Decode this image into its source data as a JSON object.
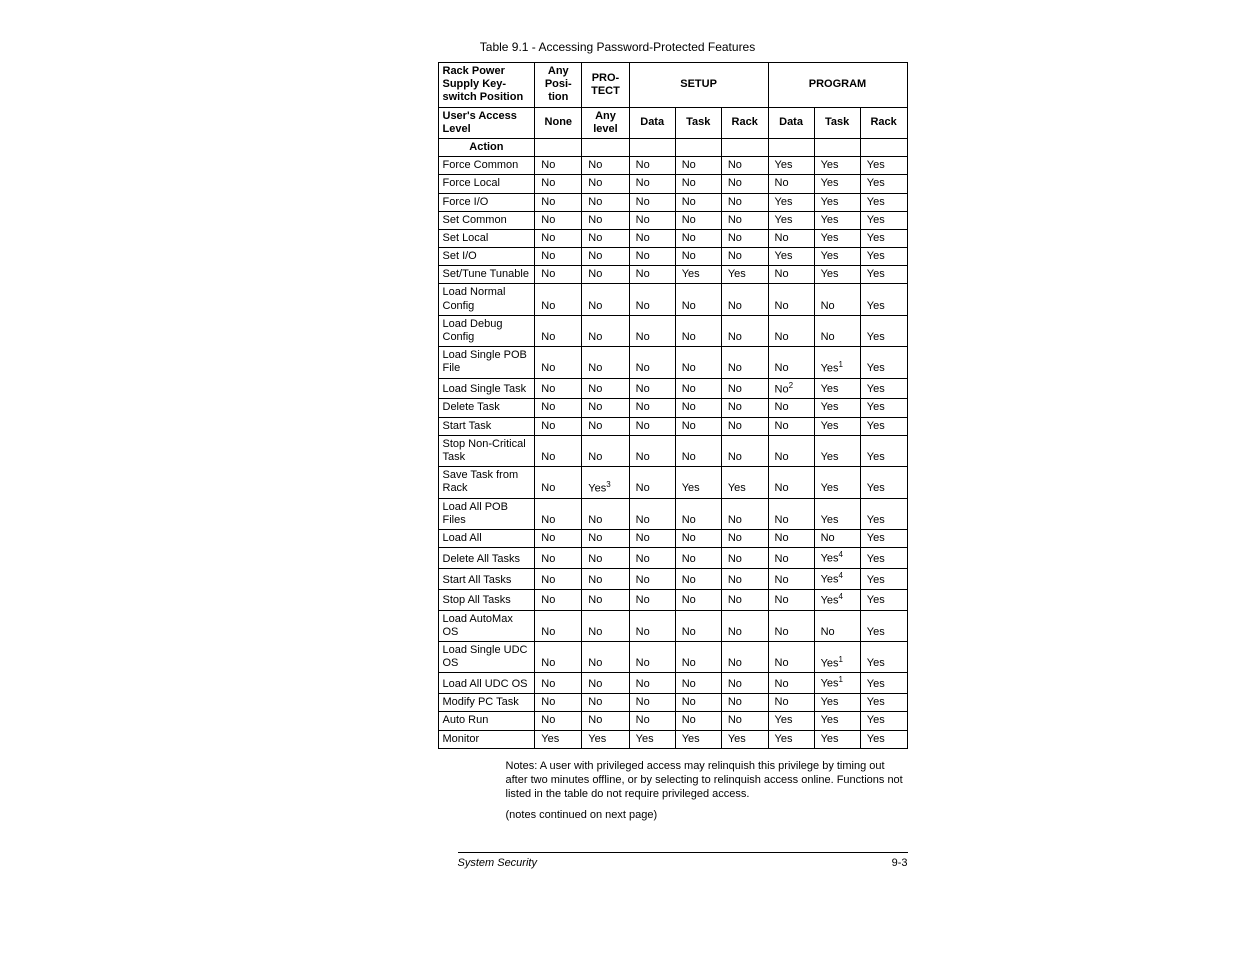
{
  "caption": "Table 9.1 - Accessing Password-Protected Features",
  "headers": {
    "row1": {
      "c1": "Rack Power Supply Key-switch Position",
      "c2": "Any Posi-tion",
      "c3": "PRO-TECT",
      "c4": "SETUP",
      "c5": "PROGRAM"
    },
    "row2": {
      "c1": "User's Access Level",
      "c2": "None",
      "c3": "Any level",
      "c4": "Data",
      "c5": "Task",
      "c6": "Rack",
      "c7": "Data",
      "c8": "Task",
      "c9": "Rack"
    },
    "row3": {
      "c1": "Action"
    }
  },
  "rows": [
    {
      "action": "Force Common",
      "v": [
        "No",
        "No",
        "No",
        "No",
        "No",
        "Yes",
        "Yes",
        "Yes"
      ]
    },
    {
      "action": "Force Local",
      "v": [
        "No",
        "No",
        "No",
        "No",
        "No",
        "No",
        "Yes",
        "Yes"
      ]
    },
    {
      "action": "Force I/O",
      "v": [
        "No",
        "No",
        "No",
        "No",
        "No",
        "Yes",
        "Yes",
        "Yes"
      ]
    },
    {
      "action": "Set Common",
      "v": [
        "No",
        "No",
        "No",
        "No",
        "No",
        "Yes",
        "Yes",
        "Yes"
      ]
    },
    {
      "action": "Set Local",
      "v": [
        "No",
        "No",
        "No",
        "No",
        "No",
        "No",
        "Yes",
        "Yes"
      ]
    },
    {
      "action": "Set I/O",
      "v": [
        "No",
        "No",
        "No",
        "No",
        "No",
        "Yes",
        "Yes",
        "Yes"
      ]
    },
    {
      "action": "Set/Tune Tunable",
      "v": [
        "No",
        "No",
        "No",
        "Yes",
        "Yes",
        "No",
        "Yes",
        "Yes"
      ]
    },
    {
      "action": "Load Normal Config",
      "v": [
        "No",
        "No",
        "No",
        "No",
        "No",
        "No",
        "No",
        "Yes"
      ]
    },
    {
      "action": "Load Debug Config",
      "v": [
        "No",
        "No",
        "No",
        "No",
        "No",
        "No",
        "No",
        "Yes"
      ]
    },
    {
      "action": "Load Single POB File",
      "v": [
        "No",
        "No",
        "No",
        "No",
        "No",
        "No",
        {
          "t": "Yes",
          "s": "1"
        },
        "Yes"
      ]
    },
    {
      "action": "Load Single Task",
      "v": [
        "No",
        "No",
        "No",
        "No",
        "No",
        {
          "t": "No",
          "s": "2"
        },
        "Yes",
        "Yes"
      ]
    },
    {
      "action": "Delete Task",
      "v": [
        "No",
        "No",
        "No",
        "No",
        "No",
        "No",
        "Yes",
        "Yes"
      ]
    },
    {
      "action": "Start Task",
      "v": [
        "No",
        "No",
        "No",
        "No",
        "No",
        "No",
        "Yes",
        "Yes"
      ]
    },
    {
      "action": "Stop Non-Critical Task",
      "v": [
        "No",
        "No",
        "No",
        "No",
        "No",
        "No",
        "Yes",
        "Yes"
      ]
    },
    {
      "action": "Save Task from Rack",
      "v": [
        "No",
        {
          "t": "Yes",
          "s": "3"
        },
        "No",
        "Yes",
        "Yes",
        "No",
        "Yes",
        "Yes"
      ]
    },
    {
      "action": "Load All POB Files",
      "v": [
        "No",
        "No",
        "No",
        "No",
        "No",
        "No",
        "Yes",
        "Yes"
      ]
    },
    {
      "action": "Load All",
      "v": [
        "No",
        "No",
        "No",
        "No",
        "No",
        "No",
        "No",
        "Yes"
      ]
    },
    {
      "action": "Delete All Tasks",
      "v": [
        "No",
        "No",
        "No",
        "No",
        "No",
        "No",
        {
          "t": "Yes",
          "s": "4"
        },
        "Yes"
      ]
    },
    {
      "action": "Start All Tasks",
      "v": [
        "No",
        "No",
        "No",
        "No",
        "No",
        "No",
        {
          "t": "Yes",
          "s": "4"
        },
        "Yes"
      ]
    },
    {
      "action": "Stop All Tasks",
      "v": [
        "No",
        "No",
        "No",
        "No",
        "No",
        "No",
        {
          "t": "Yes",
          "s": "4"
        },
        "Yes"
      ]
    },
    {
      "action": "Load AutoMax OS",
      "v": [
        "No",
        "No",
        "No",
        "No",
        "No",
        "No",
        "No",
        "Yes"
      ]
    },
    {
      "action": "Load Single UDC OS",
      "v": [
        "No",
        "No",
        "No",
        "No",
        "No",
        "No",
        {
          "t": "Yes",
          "s": "1"
        },
        "Yes"
      ]
    },
    {
      "action": "Load All UDC OS",
      "v": [
        "No",
        "No",
        "No",
        "No",
        "No",
        "No",
        {
          "t": "Yes",
          "s": "1"
        },
        "Yes"
      ]
    },
    {
      "action": "Modify PC Task",
      "v": [
        "No",
        "No",
        "No",
        "No",
        "No",
        "No",
        "Yes",
        "Yes"
      ]
    },
    {
      "action": "Auto Run",
      "v": [
        "No",
        "No",
        "No",
        "No",
        "No",
        "Yes",
        "Yes",
        "Yes"
      ]
    },
    {
      "action": "Monitor",
      "v": [
        "Yes",
        "Yes",
        "Yes",
        "Yes",
        "Yes",
        "Yes",
        "Yes",
        "Yes"
      ]
    }
  ],
  "notes": {
    "p1": "Notes: A user with privileged access may relinquish this privilege by timing out after two minutes offline, or by selecting to relinquish access online. Functions not listed in the table do not require privileged access.",
    "p2": "(notes continued on next page)"
  },
  "footer": {
    "left": "System Security",
    "right": "9-3"
  },
  "colors": {
    "border": "#000000",
    "text": "#000000",
    "bg": "#ffffff"
  }
}
